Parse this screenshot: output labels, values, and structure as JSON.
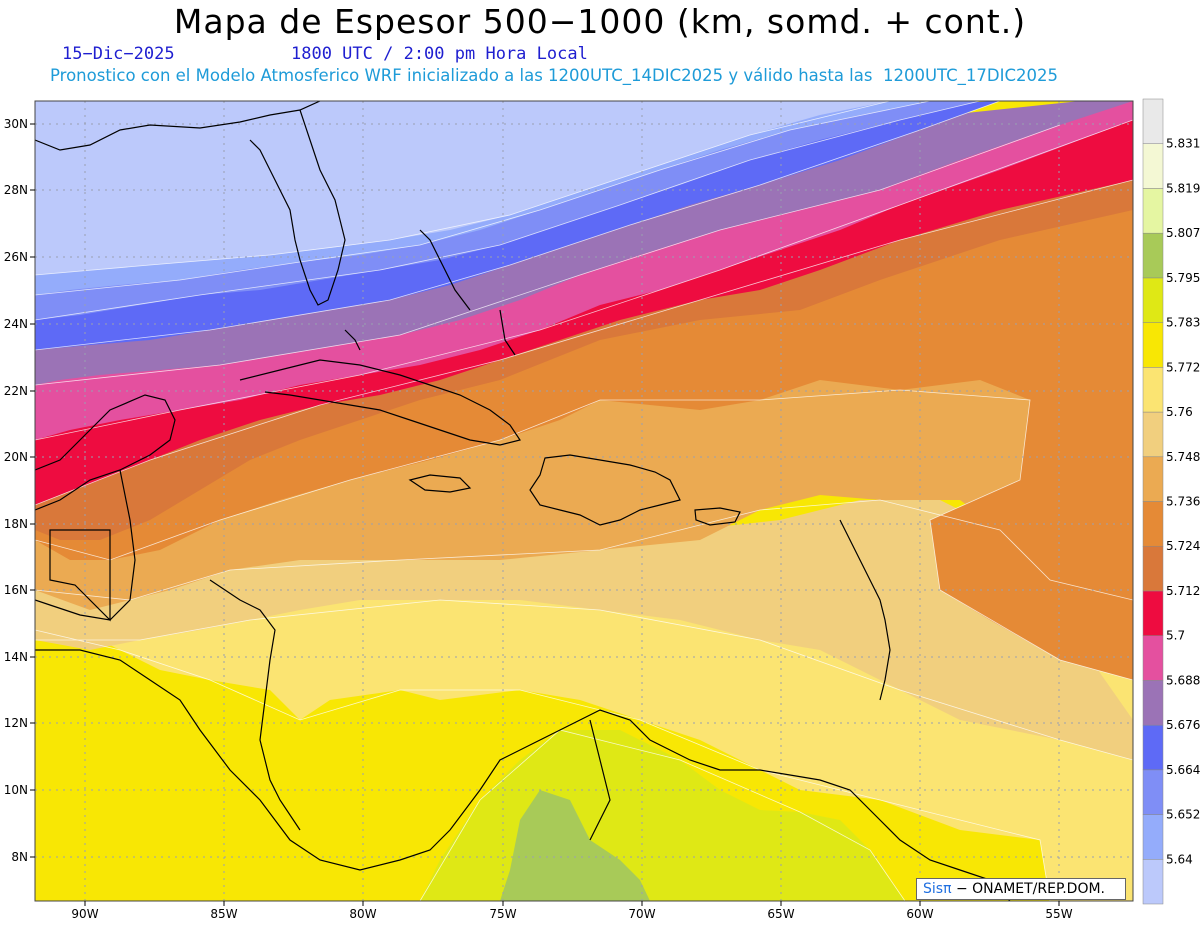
{
  "header": {
    "title": "Mapa de Espesor 500−1000 (km, somd. + cont.)",
    "date": "15−Dic−2025",
    "time": "1800 UTC / 2:00 pm Hora Local",
    "description": "Pronostico con el Modelo Atmosferico WRF inicializado a las 1200UTC_14DIC2025 y válido hasta las  1200UTC_17DIC2025"
  },
  "map": {
    "lat_labels": [
      "30N",
      "28N",
      "26N",
      "24N",
      "22N",
      "20N",
      "18N",
      "16N",
      "14N",
      "12N",
      "10N",
      "8N"
    ],
    "lon_labels": [
      "90W",
      "85W",
      "80W",
      "75W",
      "70W",
      "65W",
      "60W",
      "55W"
    ],
    "colors": {
      "land_line": "#000000",
      "grid_dots": "#9aa0b0"
    }
  },
  "colorbar": {
    "levels": [
      "5.64",
      "5.652",
      "5.664",
      "5.676",
      "5.688",
      "5.7",
      "5.712",
      "5.724",
      "5.736",
      "5.748",
      "5.76",
      "5.772",
      "5.783",
      "5.795",
      "5.807",
      "5.819",
      "5.831"
    ],
    "colors": [
      "#bcc9fb",
      "#94acfb",
      "#7f8ef6",
      "#5e6af6",
      "#9b73b6",
      "#e4509f",
      "#ee0c40",
      "#d9783a",
      "#e58a36",
      "#ebaa52",
      "#f1cf7e",
      "#fbe472",
      "#f8e704",
      "#dfe815",
      "#a8ca58",
      "#e5f6a2",
      "#f4f8d4",
      "#e9e9e9"
    ]
  },
  "credit": {
    "brand": "Sisπ",
    "org": "− ONAMET/REP.DOM."
  }
}
